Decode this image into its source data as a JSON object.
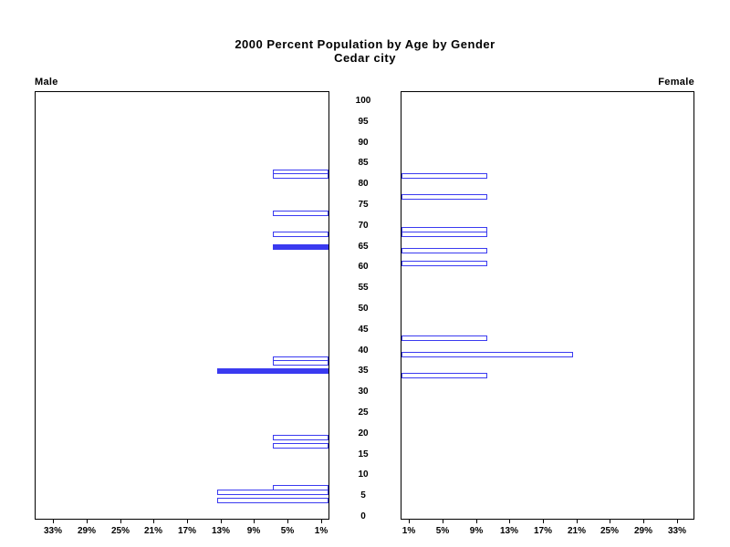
{
  "title": {
    "line1": "2000 Percent Population by Age by Gender",
    "line2": "Cedar city"
  },
  "left_panel_label": "Male",
  "right_panel_label": "Female",
  "chart_data": {
    "type": "bar",
    "subtype": "population-pyramid",
    "title": "2000 Percent Population by Age by Gender",
    "subtitle": "Cedar city",
    "legend_position": "none",
    "grid": false,
    "age_axis": {
      "min": 0,
      "max": 100,
      "tick_step": 5,
      "tick_labels": [
        "0",
        "5",
        "10",
        "15",
        "20",
        "25",
        "30",
        "35",
        "40",
        "45",
        "50",
        "55",
        "60",
        "65",
        "70",
        "75",
        "80",
        "85",
        "90",
        "95",
        "100"
      ]
    },
    "percent_axis": {
      "min": 0,
      "max": 35,
      "tick_step": 4,
      "male_tick_labels": [
        "33%",
        "29%",
        "25%",
        "21%",
        "17%",
        "13%",
        "9%",
        "5%",
        "1%"
      ],
      "female_tick_labels": [
        "1%",
        "5%",
        "9%",
        "13%",
        "17%",
        "21%",
        "25%",
        "29%",
        "33%"
      ]
    },
    "series": [
      {
        "name": "Male",
        "side": "left",
        "bars": [
          {
            "age": 83,
            "percent": 6.7,
            "style": "outline"
          },
          {
            "age": 82,
            "percent": 6.7,
            "style": "outline"
          },
          {
            "age": 73,
            "percent": 6.7,
            "style": "outline"
          },
          {
            "age": 68,
            "percent": 6.7,
            "style": "outline"
          },
          {
            "age": 65,
            "percent": 6.7,
            "style": "solid"
          },
          {
            "age": 38,
            "percent": 6.7,
            "style": "outline"
          },
          {
            "age": 37,
            "percent": 6.7,
            "style": "outline"
          },
          {
            "age": 35,
            "percent": 13.3,
            "style": "solid"
          },
          {
            "age": 19,
            "percent": 6.7,
            "style": "outline"
          },
          {
            "age": 17,
            "percent": 6.7,
            "style": "outline"
          },
          {
            "age": 7,
            "percent": 6.7,
            "style": "outline"
          },
          {
            "age": 6,
            "percent": 13.3,
            "style": "outline"
          },
          {
            "age": 4,
            "percent": 13.3,
            "style": "outline"
          }
        ]
      },
      {
        "name": "Female",
        "side": "right",
        "bars": [
          {
            "age": 82,
            "percent": 10.3,
            "style": "outline"
          },
          {
            "age": 77,
            "percent": 10.3,
            "style": "outline"
          },
          {
            "age": 69,
            "percent": 10.3,
            "style": "outline"
          },
          {
            "age": 68,
            "percent": 10.3,
            "style": "outline"
          },
          {
            "age": 64,
            "percent": 10.3,
            "style": "outline"
          },
          {
            "age": 61,
            "percent": 10.3,
            "style": "outline"
          },
          {
            "age": 43,
            "percent": 10.3,
            "style": "outline"
          },
          {
            "age": 39,
            "percent": 20.5,
            "style": "outline"
          },
          {
            "age": 34,
            "percent": 10.3,
            "style": "outline"
          }
        ]
      }
    ],
    "colors": {
      "bar_blue": "#3a3af0",
      "axis_black": "#000000",
      "background": "#ffffff"
    }
  }
}
